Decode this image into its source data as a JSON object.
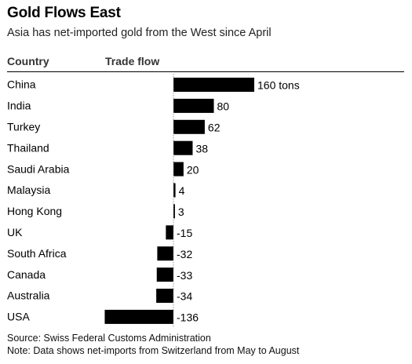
{
  "header": {
    "title": "Gold Flows East",
    "subtitle": "Asia has net-imported gold from the West since April",
    "col_country": "Country",
    "col_flow": "Trade flow"
  },
  "footer": {
    "source": "Source: Swiss Federal Customs Administration",
    "note": "Note: Data shows net-imports from Switzerland from May to August"
  },
  "colors": {
    "bar": "#000000",
    "zero_line": "#999999"
  },
  "chart_data": {
    "type": "bar",
    "orientation": "horizontal",
    "categories": [
      "China",
      "India",
      "Turkey",
      "Thailand",
      "Saudi Arabia",
      "Malaysia",
      "Hong Kong",
      "UK",
      "South Africa",
      "Canada",
      "Australia",
      "USA"
    ],
    "values": [
      160,
      80,
      62,
      38,
      20,
      4,
      3,
      -15,
      -32,
      -33,
      -34,
      -136
    ],
    "value_labels": [
      "160 tons",
      "80",
      "62",
      "38",
      "20",
      "4",
      "3",
      "-15",
      "-32",
      "-33",
      "-34",
      "-136"
    ],
    "value_unit": "tons",
    "xlim": [
      -136,
      160
    ],
    "grid": false,
    "legend": "none"
  }
}
